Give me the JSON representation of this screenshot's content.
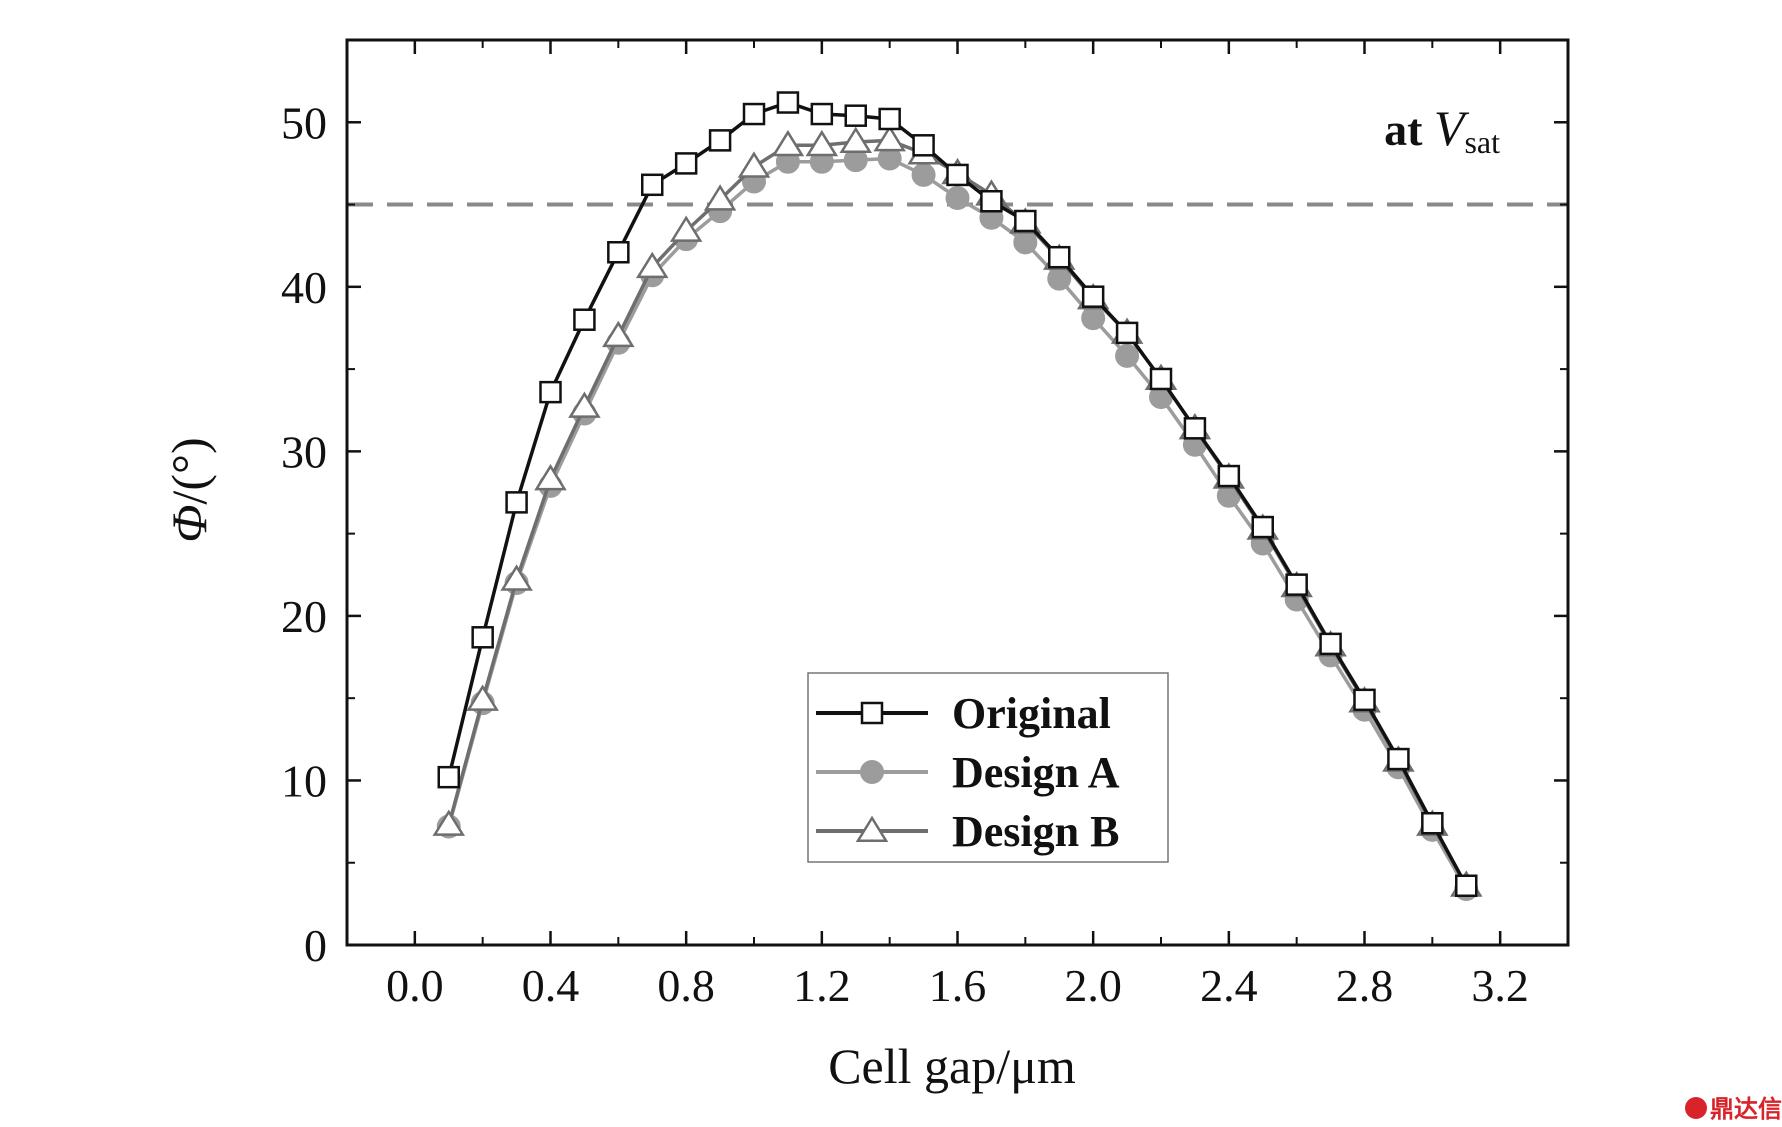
{
  "chart_data": {
    "type": "line",
    "title": "",
    "xlabel": "Cell gap/μm",
    "ylabel_symbol": "Φ",
    "ylabel_unit": "/(°)",
    "annotation": {
      "prefix": "at ",
      "symbol": "V",
      "subscript": "sat"
    },
    "xlim": [
      -0.2,
      3.4
    ],
    "ylim": [
      0,
      55
    ],
    "x_ticks": [
      0.0,
      0.4,
      0.8,
      1.2,
      1.6,
      2.0,
      2.4,
      2.8,
      3.2
    ],
    "x_tick_labels": [
      "0.0",
      "0.4",
      "0.8",
      "1.2",
      "1.6",
      "2.0",
      "2.4",
      "2.8",
      "3.2"
    ],
    "y_ticks": [
      0,
      10,
      20,
      30,
      40,
      50
    ],
    "y_tick_labels": [
      "0",
      "10",
      "20",
      "30",
      "40",
      "50"
    ],
    "reference_line": {
      "y": 45,
      "style": "dashed",
      "color": "#8a8a8a"
    },
    "legend_position": "bottom-center",
    "x": [
      0.1,
      0.2,
      0.3,
      0.4,
      0.5,
      0.6,
      0.7,
      0.8,
      0.9,
      1.0,
      1.1,
      1.2,
      1.3,
      1.4,
      1.5,
      1.6,
      1.7,
      1.8,
      1.9,
      2.0,
      2.1,
      2.2,
      2.3,
      2.4,
      2.5,
      2.6,
      2.7,
      2.8,
      2.9,
      3.0,
      3.1
    ],
    "series": [
      {
        "name": "Original",
        "marker": "square",
        "color": "#111111",
        "values": [
          10.2,
          18.7,
          26.9,
          33.6,
          38.0,
          42.1,
          46.2,
          47.5,
          48.9,
          50.5,
          51.2,
          50.5,
          50.4,
          50.2,
          48.6,
          46.8,
          45.2,
          44.0,
          41.8,
          39.4,
          37.2,
          34.4,
          31.4,
          28.5,
          25.4,
          21.9,
          18.3,
          14.9,
          11.3,
          7.4,
          3.6
        ]
      },
      {
        "name": "Design A",
        "marker": "circle",
        "color": "#9c9c9c",
        "values": [
          7.2,
          14.7,
          22.0,
          27.9,
          32.3,
          36.6,
          40.7,
          42.9,
          44.6,
          46.4,
          47.6,
          47.6,
          47.7,
          47.8,
          46.8,
          45.4,
          44.2,
          42.7,
          40.5,
          38.1,
          35.8,
          33.3,
          30.4,
          27.3,
          24.4,
          21.0,
          17.6,
          14.3,
          10.8,
          7.0,
          3.4
        ]
      },
      {
        "name": "Design B",
        "marker": "triangle",
        "color": "#6e6e6e",
        "values": [
          7.3,
          14.9,
          22.2,
          28.3,
          32.7,
          37.0,
          41.2,
          43.4,
          45.3,
          47.3,
          48.6,
          48.6,
          48.8,
          48.9,
          48.1,
          46.9,
          45.6,
          43.9,
          41.7,
          39.3,
          37.2,
          34.4,
          31.4,
          28.4,
          25.3,
          21.8,
          18.2,
          14.8,
          11.2,
          7.3,
          3.6
        ]
      }
    ]
  },
  "watermark": "鼎达信"
}
